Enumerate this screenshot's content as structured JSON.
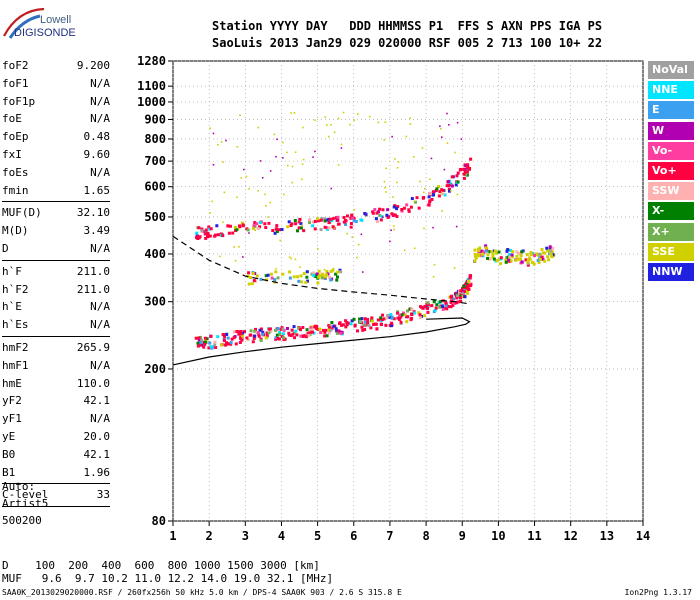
{
  "logo": {
    "top": "Lowell",
    "bottom": "DIGISONDE"
  },
  "header": {
    "line1": "Station YYYY DAY   DDD HHMMSS P1  FFS S AXN PPS IGA PS",
    "line2": "SaoLuis 2013 Jan29 029 020000 RSF 005 2 713 100 10+ 22"
  },
  "params": {
    "group1": [
      {
        "label": "foF2",
        "value": "9.200"
      },
      {
        "label": "foF1",
        "value": "N/A"
      },
      {
        "label": "foF1p",
        "value": "N/A"
      },
      {
        "label": "foE",
        "value": "N/A"
      },
      {
        "label": "foEp",
        "value": "0.48"
      },
      {
        "label": "fxI",
        "value": "9.60"
      },
      {
        "label": "foEs",
        "value": "N/A"
      },
      {
        "label": "fmin",
        "value": "1.65"
      }
    ],
    "group2": [
      {
        "label": "MUF(D)",
        "value": "32.10"
      },
      {
        "label": "M(D)",
        "value": "3.49"
      },
      {
        "label": "D",
        "value": "N/A"
      }
    ],
    "group3": [
      {
        "label": "h`F",
        "value": "211.0"
      },
      {
        "label": "h`F2",
        "value": "211.0"
      },
      {
        "label": "h`E",
        "value": "N/A"
      },
      {
        "label": "h`Es",
        "value": "N/A"
      }
    ],
    "group4": [
      {
        "label": "hmF2",
        "value": "265.9"
      },
      {
        "label": "hmF1",
        "value": "N/A"
      },
      {
        "label": "hmE",
        "value": "110.0"
      },
      {
        "label": "yF2",
        "value": "42.1"
      },
      {
        "label": "yF1",
        "value": "N/A"
      },
      {
        "label": "yE",
        "value": "20.0"
      },
      {
        "label": "B0",
        "value": "42.1"
      },
      {
        "label": "B1",
        "value": "1.96"
      }
    ],
    "group5": [
      {
        "label": "C-level",
        "value": "33"
      }
    ]
  },
  "auto": {
    "line1": "Auto:",
    "line2": "Artist5",
    "line3": "500200"
  },
  "legend": [
    {
      "label": "NoVal",
      "color": "#a0a0a0"
    },
    {
      "label": "NNE",
      "color": "#00e5ff"
    },
    {
      "label": "E",
      "color": "#3ca0f0"
    },
    {
      "label": "W",
      "color": "#b000b0"
    },
    {
      "label": "Vo-",
      "color": "#ff3ca0"
    },
    {
      "label": "Vo+",
      "color": "#ff0040"
    },
    {
      "label": "SSW",
      "color": "#ffb0b0"
    },
    {
      "label": "X-",
      "color": "#008000"
    },
    {
      "label": "X+",
      "color": "#70b050"
    },
    {
      "label": "SSE",
      "color": "#d0d000"
    },
    {
      "label": "NNW",
      "color": "#2020e0"
    }
  ],
  "dmuf": {
    "d_line": "D    100  200  400  600  800 1000 1500 3000 [km]",
    "muf_line": "MUF   9.6  9.7 10.2 11.0 12.2 14.0 19.0 32.1 [MHz]"
  },
  "footer": {
    "left": "SAA0K_2013029020000.RSF / 260fx256h 50 kHz 5.0 km / DPS-4 SAA0K 903 / 2.6 S 315.8 E",
    "right": "Ion2Png 1.3.17"
  },
  "chart_data": {
    "type": "scatter",
    "xlim": [
      1,
      14
    ],
    "ylim": [
      80,
      1280
    ],
    "xticks": [
      1,
      2,
      3,
      4,
      5,
      6,
      7,
      8,
      9,
      10,
      11,
      12,
      13,
      14
    ],
    "yticks": [
      80,
      200,
      300,
      400,
      500,
      600,
      700,
      800,
      900,
      1000,
      1100,
      1280
    ],
    "grid": true,
    "scale_y": "log",
    "traces": [
      {
        "name": "F2 trace",
        "color": "#ff0040",
        "x": [
          1.6,
          2.0,
          2.5,
          3.0,
          3.5,
          4.0,
          4.5,
          5.0,
          5.5,
          6.0,
          6.5,
          7.0,
          7.5,
          8.0,
          8.5,
          8.8,
          9.0,
          9.1,
          9.2
        ],
        "y": [
          235,
          238,
          242,
          245,
          248,
          250,
          252,
          255,
          258,
          262,
          266,
          272,
          280,
          290,
          300,
          310,
          320,
          330,
          345
        ]
      },
      {
        "name": "F2 2-hop",
        "color": "#ff0040",
        "x": [
          1.6,
          2.0,
          3.0,
          4.0,
          5.0,
          5.5,
          6.0,
          7.0,
          8.0,
          8.5,
          9.0,
          9.2
        ],
        "y": [
          455,
          460,
          470,
          475,
          485,
          490,
          495,
          520,
          560,
          600,
          660,
          690
        ]
      },
      {
        "name": "Es-like",
        "color": "#d0d000",
        "x": [
          3.0,
          4.0,
          5.0,
          5.6
        ],
        "y": [
          350,
          352,
          352,
          355
        ]
      },
      {
        "name": "Spread",
        "color": "#d0d000",
        "x": [
          9.3,
          9.6,
          10.0,
          10.4,
          10.8,
          11.2,
          11.5
        ],
        "y": [
          400,
          410,
          395,
          405,
          390,
          400,
          410
        ]
      }
    ],
    "profile_solid": {
      "x": [
        1.0,
        2.0,
        3.0,
        4.0,
        5.0,
        6.0,
        7.0,
        8.0,
        8.8,
        9.1,
        9.2,
        9.0,
        8.0
      ],
      "y": [
        205,
        215,
        222,
        228,
        233,
        238,
        243,
        250,
        258,
        262,
        266,
        272,
        270
      ]
    },
    "profile_dashed": {
      "x": [
        1.0,
        2.0,
        3.0,
        4.0,
        5.0,
        6.0,
        7.0,
        8.0,
        8.8,
        9.2
      ],
      "y": [
        445,
        385,
        350,
        335,
        325,
        318,
        312,
        305,
        300,
        296
      ]
    }
  }
}
